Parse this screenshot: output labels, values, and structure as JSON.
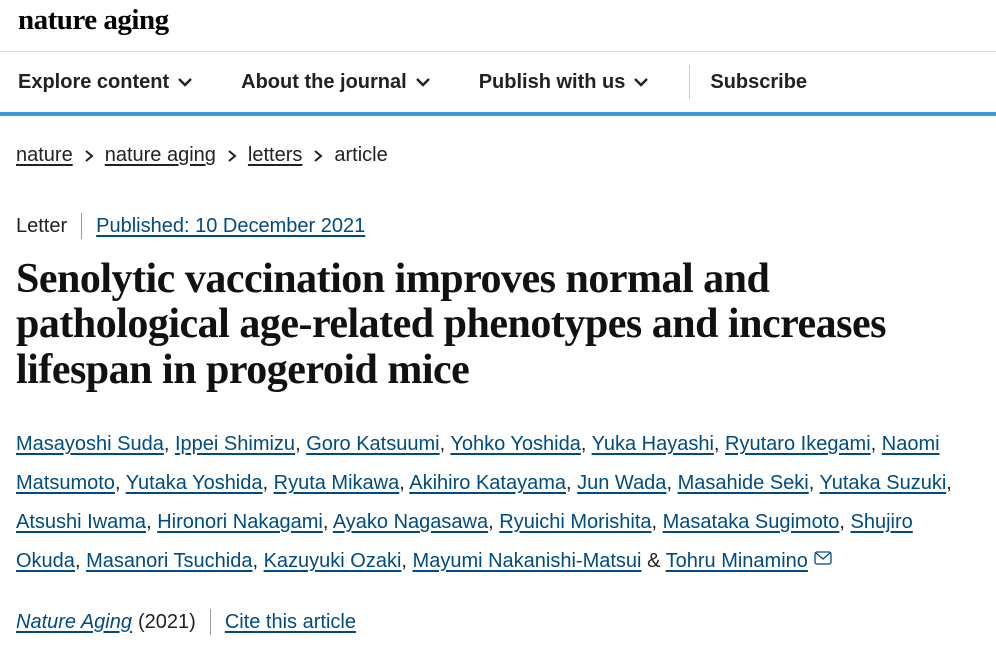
{
  "brand": {
    "name": "nature aging"
  },
  "nav": {
    "items": [
      {
        "label": "Explore content"
      },
      {
        "label": "About the journal"
      },
      {
        "label": "Publish with us"
      }
    ],
    "subscribe": "Subscribe",
    "accent_color": "#3c9cd7"
  },
  "breadcrumb": {
    "items": [
      {
        "label": "nature",
        "link": true
      },
      {
        "label": "nature aging",
        "link": true
      },
      {
        "label": "letters",
        "link": true
      },
      {
        "label": "article",
        "link": false
      }
    ]
  },
  "meta": {
    "type": "Letter",
    "published_label": "Published: 10 December 2021"
  },
  "article": {
    "title": "Senolytic vaccination improves normal and pathological age-related phenotypes and increases lifespan in progeroid mice"
  },
  "authors": {
    "separator": ", ",
    "final_separator": " & ",
    "list": [
      "Masayoshi Suda",
      "Ippei Shimizu",
      "Goro Katsuumi",
      "Yohko Yoshida",
      "Yuka Hayashi",
      "Ryutaro Ikegami",
      "Naomi Matsumoto",
      "Yutaka Yoshida",
      "Ryuta Mikawa",
      "Akihiro Katayama",
      "Jun Wada",
      "Masahide Seki",
      "Yutaka Suzuki",
      "Atsushi Iwama",
      "Hironori Nakagami",
      "Ayako Nagasawa",
      "Ryuichi Morishita",
      "Masataka Sugimoto",
      "Shujiro Okuda",
      "Masanori Tsuchida",
      "Kazuyuki Ozaki",
      "Mayumi Nakanishi-Matsui",
      "Tohru Minamino"
    ],
    "corresponding_index": 22
  },
  "journal_ref": {
    "journal": "Nature Aging",
    "year": "(2021)",
    "cite_label": "Cite this article"
  },
  "colors": {
    "link": "#004b83",
    "text": "#222222",
    "border": "#d9d9d9"
  }
}
